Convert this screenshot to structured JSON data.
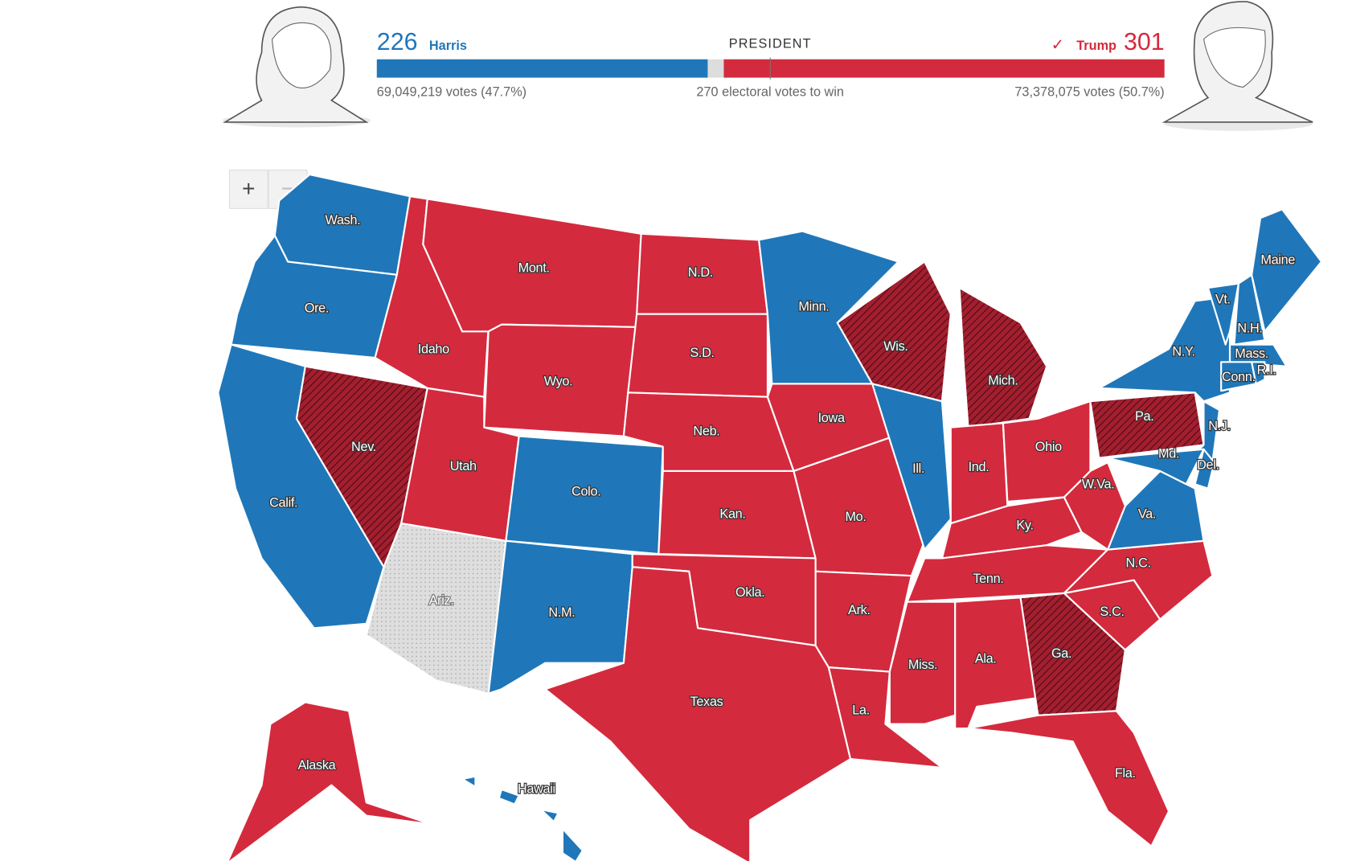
{
  "header": {
    "title": "PRESIDENT",
    "threshold": "270 electoral votes to win",
    "harris": {
      "electoral_votes": 226,
      "name": "Harris",
      "tally": "69,049,219 votes (47.7%)",
      "color": "#1f77b9"
    },
    "trump": {
      "electoral_votes": 301,
      "name": "Trump",
      "check": "✓",
      "tally": "73,378,075 votes (50.7%)",
      "color": "#d42a3d"
    }
  },
  "controls": {
    "zoom_in": "+",
    "zoom_out": "−"
  },
  "states": [
    {
      "label": "Wash.",
      "color": "#1f77b9"
    },
    {
      "label": "Ore.",
      "color": "#1f77b9"
    },
    {
      "label": "Calif.",
      "color": "#1f77b9"
    },
    {
      "label": "Nev.",
      "color": "#a31f2f",
      "hatch": true
    },
    {
      "label": "Idaho",
      "color": "#d42a3d"
    },
    {
      "label": "Mont.",
      "color": "#d42a3d"
    },
    {
      "label": "Wyo.",
      "color": "#d42a3d"
    },
    {
      "label": "Utah",
      "color": "#d42a3d"
    },
    {
      "label": "Colo.",
      "color": "#1f77b9"
    },
    {
      "label": "Ariz.",
      "color": "#dedede",
      "dots": true
    },
    {
      "label": "N.M.",
      "color": "#1f77b9"
    },
    {
      "label": "N.D.",
      "color": "#d42a3d"
    },
    {
      "label": "S.D.",
      "color": "#d42a3d"
    },
    {
      "label": "Neb.",
      "color": "#d42a3d"
    },
    {
      "label": "Kan.",
      "color": "#d42a3d"
    },
    {
      "label": "Okla.",
      "color": "#d42a3d"
    },
    {
      "label": "Texas",
      "color": "#d42a3d"
    },
    {
      "label": "Minn.",
      "color": "#1f77b9"
    },
    {
      "label": "Iowa",
      "color": "#d42a3d"
    },
    {
      "label": "Mo.",
      "color": "#d42a3d"
    },
    {
      "label": "Ark.",
      "color": "#d42a3d"
    },
    {
      "label": "La.",
      "color": "#d42a3d"
    },
    {
      "label": "Wis.",
      "color": "#a31f2f",
      "hatch": true
    },
    {
      "label": "Ill.",
      "color": "#1f77b9"
    },
    {
      "label": "Mich.",
      "color": "#a31f2f",
      "hatch": true
    },
    {
      "label": "Ind.",
      "color": "#d42a3d"
    },
    {
      "label": "Ohio",
      "color": "#d42a3d"
    },
    {
      "label": "Ky.",
      "color": "#d42a3d"
    },
    {
      "label": "Tenn.",
      "color": "#d42a3d"
    },
    {
      "label": "Miss.",
      "color": "#d42a3d"
    },
    {
      "label": "Ala.",
      "color": "#d42a3d"
    },
    {
      "label": "Ga.",
      "color": "#a31f2f",
      "hatch": true
    },
    {
      "label": "Fla.",
      "color": "#d42a3d"
    },
    {
      "label": "S.C.",
      "color": "#d42a3d"
    },
    {
      "label": "N.C.",
      "color": "#d42a3d"
    },
    {
      "label": "Va.",
      "color": "#1f77b9"
    },
    {
      "label": "W.Va.",
      "color": "#d42a3d"
    },
    {
      "label": "Pa.",
      "color": "#a31f2f",
      "hatch": true
    },
    {
      "label": "N.Y.",
      "color": "#1f77b9"
    },
    {
      "label": "N.J.",
      "color": "#1f77b9"
    },
    {
      "label": "Md.",
      "color": "#1f77b9"
    },
    {
      "label": "Del.",
      "color": "#1f77b9"
    },
    {
      "label": "Vt.",
      "color": "#1f77b9"
    },
    {
      "label": "N.H.",
      "color": "#1f77b9"
    },
    {
      "label": "Mass.",
      "color": "#1f77b9"
    },
    {
      "label": "Conn.",
      "color": "#1f77b9"
    },
    {
      "label": "R.I.",
      "color": "#1f77b9"
    },
    {
      "label": "Maine",
      "color": "#1f77b9"
    },
    {
      "label": "Alaska",
      "color": "#d42a3d"
    },
    {
      "label": "Hawaii",
      "color": "#1f77b9"
    }
  ]
}
